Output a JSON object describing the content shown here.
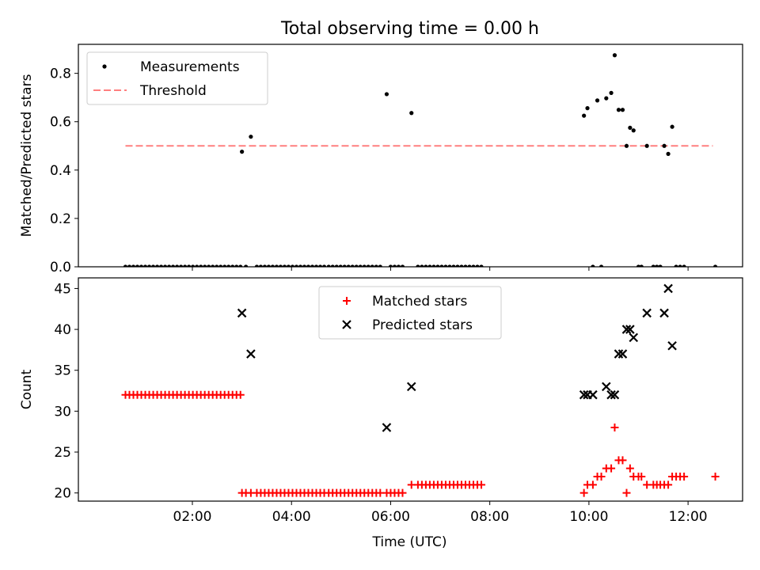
{
  "figure": {
    "title": "Total observing time = 0.00 h"
  },
  "chart_data": [
    {
      "type": "scatter",
      "title": "Total observing time = 0.00 h",
      "xlabel": "",
      "ylabel": "Matched/Predicted stars",
      "x_unit": "hours (UTC)",
      "xlim": [
        -0.3,
        13.1
      ],
      "ylim": [
        0,
        0.92
      ],
      "x_ticks": [
        2,
        4,
        6,
        8,
        10,
        12
      ],
      "y_ticks": [
        0.0,
        0.2,
        0.4,
        0.6,
        0.8
      ],
      "y_tick_labels": [
        "0.0",
        "0.2",
        "0.4",
        "0.6",
        "0.8"
      ],
      "legend": {
        "position": "upper-left",
        "entries": [
          "Measurements",
          "Threshold"
        ]
      },
      "threshold": {
        "name": "Threshold",
        "value": 0.5,
        "x_range": [
          0.65,
          12.5
        ],
        "color": "#ff7f7f",
        "style": "dashed"
      },
      "series": [
        {
          "name": "Measurements",
          "color": "#000000",
          "marker": "dot",
          "points": [
            [
              0.65,
              0
            ],
            [
              0.73,
              0
            ],
            [
              0.81,
              0
            ],
            [
              0.89,
              0
            ],
            [
              0.97,
              0
            ],
            [
              1.05,
              0
            ],
            [
              1.13,
              0
            ],
            [
              1.21,
              0
            ],
            [
              1.29,
              0
            ],
            [
              1.37,
              0
            ],
            [
              1.45,
              0
            ],
            [
              1.53,
              0
            ],
            [
              1.61,
              0
            ],
            [
              1.69,
              0
            ],
            [
              1.77,
              0
            ],
            [
              1.85,
              0
            ],
            [
              1.93,
              0
            ],
            [
              2.01,
              0
            ],
            [
              2.09,
              0
            ],
            [
              2.17,
              0
            ],
            [
              2.25,
              0
            ],
            [
              2.33,
              0
            ],
            [
              2.41,
              0
            ],
            [
              2.49,
              0
            ],
            [
              2.57,
              0
            ],
            [
              2.65,
              0
            ],
            [
              2.73,
              0
            ],
            [
              2.81,
              0
            ],
            [
              2.89,
              0
            ],
            [
              2.97,
              0
            ],
            [
              3.0,
              0.476
            ],
            [
              3.08,
              0
            ],
            [
              3.18,
              0.538
            ],
            [
              3.3,
              0
            ],
            [
              3.38,
              0
            ],
            [
              3.46,
              0
            ],
            [
              3.54,
              0
            ],
            [
              3.62,
              0
            ],
            [
              3.7,
              0
            ],
            [
              3.78,
              0
            ],
            [
              3.86,
              0
            ],
            [
              3.94,
              0
            ],
            [
              4.02,
              0
            ],
            [
              4.1,
              0
            ],
            [
              4.18,
              0
            ],
            [
              4.26,
              0
            ],
            [
              4.34,
              0
            ],
            [
              4.42,
              0
            ],
            [
              4.5,
              0
            ],
            [
              4.58,
              0
            ],
            [
              4.66,
              0
            ],
            [
              4.75,
              0
            ],
            [
              4.83,
              0
            ],
            [
              4.91,
              0
            ],
            [
              4.99,
              0
            ],
            [
              5.07,
              0
            ],
            [
              5.15,
              0
            ],
            [
              5.23,
              0
            ],
            [
              5.31,
              0
            ],
            [
              5.39,
              0
            ],
            [
              5.47,
              0
            ],
            [
              5.55,
              0
            ],
            [
              5.63,
              0
            ],
            [
              5.71,
              0
            ],
            [
              5.79,
              0
            ],
            [
              5.92,
              0.714
            ],
            [
              6.0,
              0
            ],
            [
              6.08,
              0
            ],
            [
              6.16,
              0
            ],
            [
              6.24,
              0
            ],
            [
              6.42,
              0.636
            ],
            [
              6.55,
              0
            ],
            [
              6.63,
              0
            ],
            [
              6.71,
              0
            ],
            [
              6.79,
              0
            ],
            [
              6.87,
              0
            ],
            [
              6.95,
              0
            ],
            [
              7.03,
              0
            ],
            [
              7.11,
              0
            ],
            [
              7.19,
              0
            ],
            [
              7.27,
              0
            ],
            [
              7.35,
              0
            ],
            [
              7.43,
              0
            ],
            [
              7.51,
              0
            ],
            [
              7.59,
              0
            ],
            [
              7.67,
              0
            ],
            [
              7.75,
              0
            ],
            [
              7.83,
              0
            ],
            [
              9.9,
              0.625
            ],
            [
              9.97,
              0.656
            ],
            [
              10.08,
              0
            ],
            [
              10.17,
              0.688
            ],
            [
              10.25,
              0
            ],
            [
              10.35,
              0.697
            ],
            [
              10.45,
              0.719
            ],
            [
              10.52,
              0.875
            ],
            [
              10.6,
              0.649
            ],
            [
              10.68,
              0.649
            ],
            [
              10.76,
              0.5
            ],
            [
              10.83,
              0.575
            ],
            [
              10.9,
              0.564
            ],
            [
              11.0,
              0
            ],
            [
              11.06,
              0
            ],
            [
              11.17,
              0.5
            ],
            [
              11.3,
              0
            ],
            [
              11.37,
              0
            ],
            [
              11.44,
              0
            ],
            [
              11.52,
              0.5
            ],
            [
              11.6,
              0.467
            ],
            [
              11.68,
              0.579
            ],
            [
              11.76,
              0
            ],
            [
              11.84,
              0
            ],
            [
              11.92,
              0
            ],
            [
              12.55,
              0
            ]
          ]
        }
      ]
    },
    {
      "type": "scatter",
      "title": "",
      "xlabel": "Time (UTC)",
      "ylabel": "Count",
      "x_unit": "hours (UTC)",
      "xlim": [
        -0.3,
        13.1
      ],
      "ylim": [
        19,
        46.3
      ],
      "x_ticks": [
        2,
        4,
        6,
        8,
        10,
        12
      ],
      "x_tick_labels": [
        "02:00",
        "04:00",
        "06:00",
        "08:00",
        "10:00",
        "12:00"
      ],
      "y_ticks": [
        20,
        25,
        30,
        35,
        40,
        45
      ],
      "y_tick_labels": [
        "20",
        "25",
        "30",
        "35",
        "40",
        "45"
      ],
      "legend": {
        "position": "upper-center",
        "entries": [
          "Matched stars",
          "Predicted stars"
        ]
      },
      "series": [
        {
          "name": "Matched stars",
          "color": "#ff0000",
          "marker": "plus",
          "points": [
            [
              0.65,
              32
            ],
            [
              0.73,
              32
            ],
            [
              0.81,
              32
            ],
            [
              0.89,
              32
            ],
            [
              0.97,
              32
            ],
            [
              1.05,
              32
            ],
            [
              1.13,
              32
            ],
            [
              1.21,
              32
            ],
            [
              1.29,
              32
            ],
            [
              1.37,
              32
            ],
            [
              1.45,
              32
            ],
            [
              1.53,
              32
            ],
            [
              1.61,
              32
            ],
            [
              1.69,
              32
            ],
            [
              1.77,
              32
            ],
            [
              1.85,
              32
            ],
            [
              1.93,
              32
            ],
            [
              2.01,
              32
            ],
            [
              2.09,
              32
            ],
            [
              2.17,
              32
            ],
            [
              2.25,
              32
            ],
            [
              2.33,
              32
            ],
            [
              2.41,
              32
            ],
            [
              2.49,
              32
            ],
            [
              2.57,
              32
            ],
            [
              2.65,
              32
            ],
            [
              2.73,
              32
            ],
            [
              2.81,
              32
            ],
            [
              2.89,
              32
            ],
            [
              2.97,
              32
            ],
            [
              3.0,
              20
            ],
            [
              3.08,
              20
            ],
            [
              3.18,
              20
            ],
            [
              3.3,
              20
            ],
            [
              3.38,
              20
            ],
            [
              3.46,
              20
            ],
            [
              3.54,
              20
            ],
            [
              3.62,
              20
            ],
            [
              3.7,
              20
            ],
            [
              3.78,
              20
            ],
            [
              3.86,
              20
            ],
            [
              3.94,
              20
            ],
            [
              4.02,
              20
            ],
            [
              4.1,
              20
            ],
            [
              4.18,
              20
            ],
            [
              4.26,
              20
            ],
            [
              4.34,
              20
            ],
            [
              4.42,
              20
            ],
            [
              4.5,
              20
            ],
            [
              4.58,
              20
            ],
            [
              4.66,
              20
            ],
            [
              4.75,
              20
            ],
            [
              4.83,
              20
            ],
            [
              4.91,
              20
            ],
            [
              4.99,
              20
            ],
            [
              5.07,
              20
            ],
            [
              5.15,
              20
            ],
            [
              5.23,
              20
            ],
            [
              5.31,
              20
            ],
            [
              5.39,
              20
            ],
            [
              5.47,
              20
            ],
            [
              5.55,
              20
            ],
            [
              5.63,
              20
            ],
            [
              5.71,
              20
            ],
            [
              5.79,
              20
            ],
            [
              5.92,
              20
            ],
            [
              6.0,
              20
            ],
            [
              6.08,
              20
            ],
            [
              6.16,
              20
            ],
            [
              6.24,
              20
            ],
            [
              6.42,
              21
            ],
            [
              6.55,
              21
            ],
            [
              6.63,
              21
            ],
            [
              6.71,
              21
            ],
            [
              6.79,
              21
            ],
            [
              6.87,
              21
            ],
            [
              6.95,
              21
            ],
            [
              7.03,
              21
            ],
            [
              7.11,
              21
            ],
            [
              7.19,
              21
            ],
            [
              7.27,
              21
            ],
            [
              7.35,
              21
            ],
            [
              7.43,
              21
            ],
            [
              7.51,
              21
            ],
            [
              7.59,
              21
            ],
            [
              7.67,
              21
            ],
            [
              7.75,
              21
            ],
            [
              7.83,
              21
            ],
            [
              9.9,
              20
            ],
            [
              9.97,
              21
            ],
            [
              10.08,
              21
            ],
            [
              10.17,
              22
            ],
            [
              10.25,
              22
            ],
            [
              10.35,
              23
            ],
            [
              10.45,
              23
            ],
            [
              10.52,
              28
            ],
            [
              10.6,
              24
            ],
            [
              10.68,
              24
            ],
            [
              10.76,
              20
            ],
            [
              10.83,
              23
            ],
            [
              10.9,
              22
            ],
            [
              11.0,
              22
            ],
            [
              11.06,
              22
            ],
            [
              11.17,
              21
            ],
            [
              11.3,
              21
            ],
            [
              11.37,
              21
            ],
            [
              11.44,
              21
            ],
            [
              11.52,
              21
            ],
            [
              11.6,
              21
            ],
            [
              11.68,
              22
            ],
            [
              11.76,
              22
            ],
            [
              11.84,
              22
            ],
            [
              11.92,
              22
            ],
            [
              12.55,
              22
            ]
          ]
        },
        {
          "name": "Predicted stars",
          "color": "#000000",
          "marker": "x",
          "points": [
            [
              3.0,
              42
            ],
            [
              3.18,
              37
            ],
            [
              5.92,
              28
            ],
            [
              6.42,
              33
            ],
            [
              9.9,
              32
            ],
            [
              9.97,
              32
            ],
            [
              10.08,
              32
            ],
            [
              10.35,
              33
            ],
            [
              10.45,
              32
            ],
            [
              10.52,
              32
            ],
            [
              10.6,
              37
            ],
            [
              10.68,
              37
            ],
            [
              10.76,
              40
            ],
            [
              10.83,
              40
            ],
            [
              10.9,
              39
            ],
            [
              11.17,
              42
            ],
            [
              11.52,
              42
            ],
            [
              11.6,
              45
            ],
            [
              11.68,
              38
            ]
          ]
        }
      ]
    }
  ]
}
